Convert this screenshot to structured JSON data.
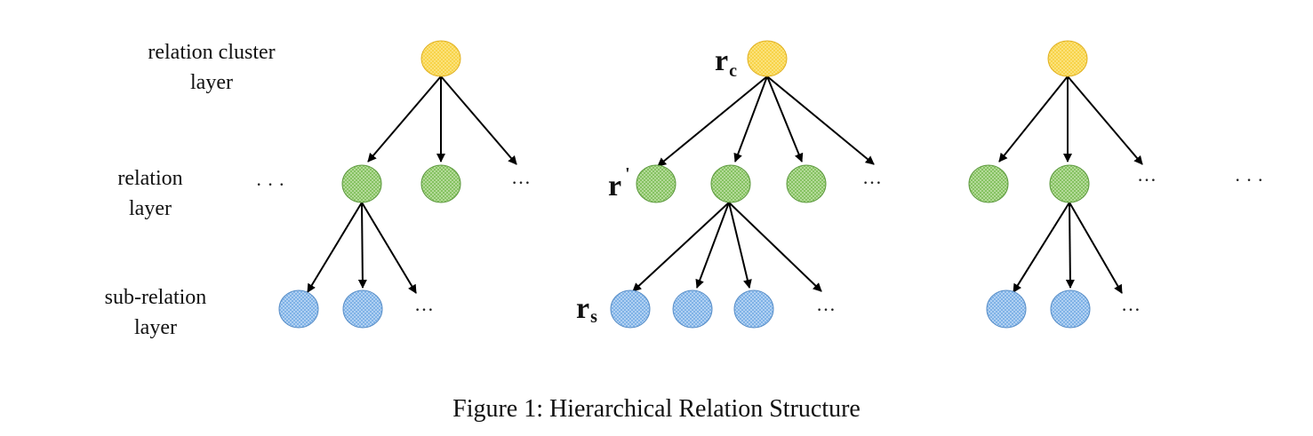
{
  "layers": {
    "cluster": [
      "relation cluster",
      "layer"
    ],
    "relation": [
      "relation",
      "layer"
    ],
    "subrelation": [
      "sub-relation",
      "layer"
    ]
  },
  "ellipsis": "…",
  "outer_ellipsis": "· · ·",
  "symbols": {
    "rc_main": "r",
    "rc_sub": "c",
    "rprime_main": "r",
    "rprime_sup": "'",
    "rs_main": "r",
    "rs_sub": "s"
  },
  "colors": {
    "cluster_fill": "#f8d34a",
    "cluster_stroke": "#e0b020",
    "relation_fill": "#86c262",
    "relation_stroke": "#5e9a3f",
    "subrelation_fill": "#7fb2e6",
    "subrelation_stroke": "#5a8fc8"
  },
  "caption": "Figure 1: Hierarchical Relation Structure"
}
